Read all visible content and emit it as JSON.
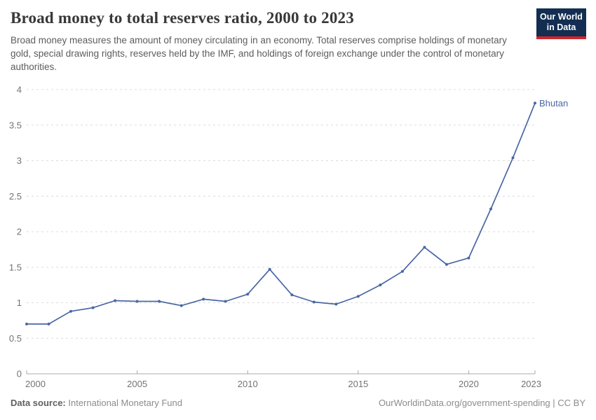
{
  "header": {
    "title": "Broad money to total reserves ratio, 2000 to 2023",
    "subtitle": "Broad money measures the amount of money circulating in an economy. Total reserves comprise holdings of monetary gold, special drawing rights, reserves held by the IMF, and holdings of foreign exchange under the control of monetary authorities.",
    "logo_line1": "Our World",
    "logo_line2": "in Data",
    "logo_bg_color": "#132e51",
    "logo_accent_color": "#d0262b"
  },
  "chart_data": {
    "type": "line",
    "title": "Broad money to total reserves ratio, 2000 to 2023",
    "xlabel": "",
    "ylabel": "",
    "xlim": [
      2000,
      2023
    ],
    "ylim": [
      0,
      4
    ],
    "x_ticks": [
      2000,
      2005,
      2010,
      2015,
      2020,
      2023
    ],
    "y_ticks": [
      0,
      0.5,
      1,
      1.5,
      2,
      2.5,
      3,
      3.5,
      4
    ],
    "grid": "horizontal-dashed",
    "legend_position": "end-of-line-label",
    "gridline_color": "#dcdcdc",
    "axis_color": "#a8a8a8",
    "tick_label_color": "#737373",
    "series": [
      {
        "name": "Bhutan",
        "color": "#4a67a3",
        "x": [
          2000,
          2001,
          2002,
          2003,
          2004,
          2005,
          2006,
          2007,
          2008,
          2009,
          2010,
          2011,
          2012,
          2013,
          2014,
          2015,
          2016,
          2017,
          2018,
          2019,
          2020,
          2021,
          2022,
          2023
        ],
        "values": [
          0.7,
          0.7,
          0.88,
          0.93,
          1.03,
          1.02,
          1.02,
          0.96,
          1.05,
          1.02,
          1.12,
          1.47,
          1.11,
          1.01,
          0.98,
          1.09,
          1.25,
          1.44,
          1.78,
          1.54,
          1.63,
          2.32,
          3.04,
          3.81
        ]
      }
    ]
  },
  "footer": {
    "source_label": "Data source:",
    "source_value": "International Monetary Fund",
    "attribution": "OurWorldinData.org/government-spending | CC BY"
  }
}
